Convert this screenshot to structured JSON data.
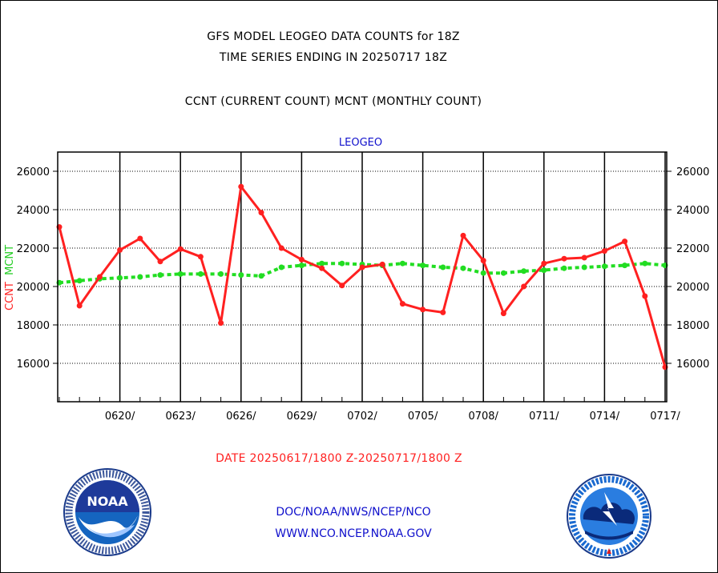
{
  "title_line1": "GFS MODEL LEOGEO DATA COUNTS for 18Z",
  "title_line2": "TIME SERIES ENDING IN 20250717 18Z",
  "subtitle": "CCNT (CURRENT COUNT) MCNT (MONTHLY COUNT)",
  "station": "LEOGEO",
  "ylabel_ccnt": "CCNT",
  "ylabel_mcnt": "MCNT",
  "date_range": "DATE 20250617/1800 Z-20250717/1800 Z",
  "credit_line1": "DOC/NOAA/NWS/NCEP/NCO",
  "credit_line2": "WWW.NCO.NCEP.NOAA.GOV",
  "colors": {
    "ccnt": "#ff2020",
    "mcnt": "#22dd22",
    "station": "#1010cc"
  },
  "logos": [
    "noaa-logo",
    "national-weather-service-logo"
  ],
  "chart_data": {
    "type": "line",
    "x_start": "20250617",
    "x_end": "20250717",
    "x": [
      "0617",
      "0618",
      "0619",
      "0620",
      "0621",
      "0622",
      "0623",
      "0624",
      "0625",
      "0626",
      "0627",
      "0628",
      "0629",
      "0630",
      "0701",
      "0702",
      "0703",
      "0704",
      "0705",
      "0706",
      "0707",
      "0708",
      "0709",
      "0710",
      "0711",
      "0712",
      "0713",
      "0714",
      "0715",
      "0716",
      "0717"
    ],
    "xticks": [
      "0620/",
      "0623/",
      "0626/",
      "0629/",
      "0702/",
      "0705/",
      "0708/",
      "0711/",
      "0714/",
      "0717/"
    ],
    "yticks": [
      16000,
      18000,
      20000,
      22000,
      24000,
      26000
    ],
    "ylim": [
      14000,
      27000
    ],
    "grid": true,
    "series": [
      {
        "name": "CCNT",
        "values": [
          23100,
          19000,
          20500,
          21900,
          22500,
          21300,
          21950,
          21550,
          18100,
          25200,
          23850,
          22000,
          21400,
          20950,
          20050,
          21000,
          21150,
          19100,
          18800,
          18650,
          22650,
          21350,
          18600,
          20000,
          21200,
          21450,
          21500,
          21850,
          22350,
          19500,
          15800
        ]
      },
      {
        "name": "MCNT",
        "values": [
          20200,
          20300,
          20400,
          20450,
          20500,
          20600,
          20650,
          20650,
          20650,
          20600,
          20550,
          21000,
          21100,
          21200,
          21200,
          21150,
          21100,
          21200,
          21100,
          21000,
          20950,
          20700,
          20700,
          20800,
          20850,
          20950,
          21000,
          21050,
          21100,
          21200,
          21100
        ]
      }
    ]
  }
}
